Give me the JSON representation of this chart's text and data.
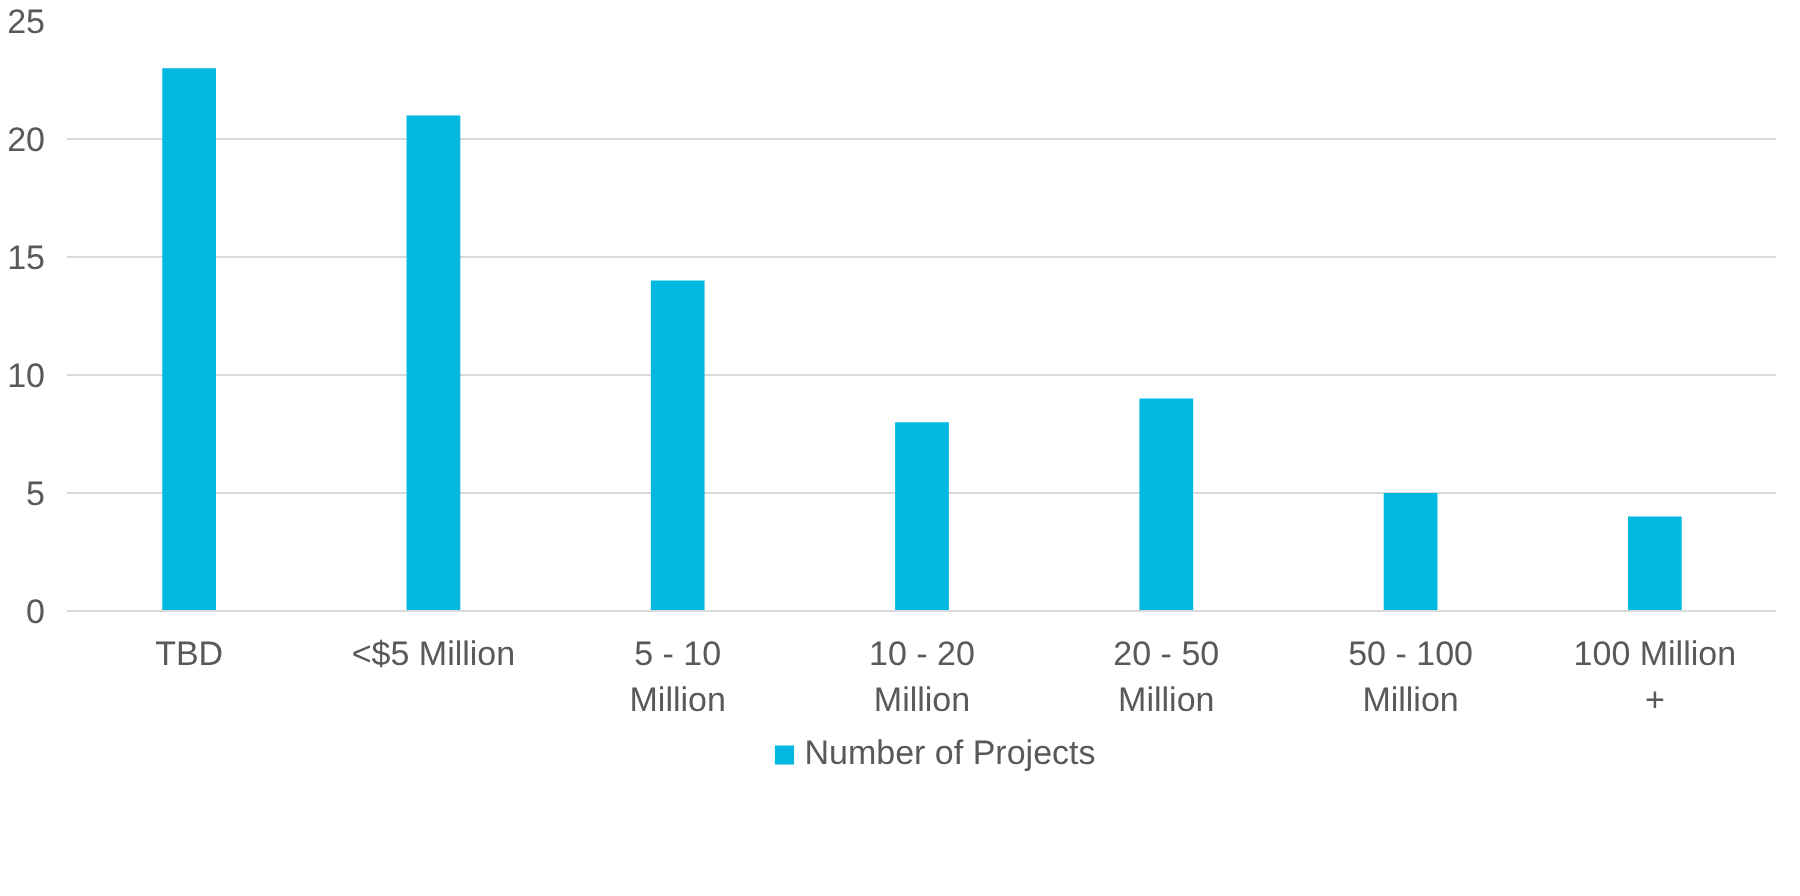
{
  "chart_data": {
    "type": "bar",
    "categories": [
      "TBD",
      "<$5 Million",
      "5 - 10 Million",
      "10 - 20 Million",
      "20 - 50 Million",
      "50 - 100 Million",
      "100 Million +"
    ],
    "series": [
      {
        "name": "Number of Projects",
        "color": "#00b8e0",
        "values": [
          23,
          21,
          14,
          8,
          9,
          5,
          4
        ]
      }
    ],
    "ylim": [
      0,
      25
    ],
    "yticks": [
      0,
      5,
      10,
      15,
      20,
      25
    ],
    "grid": "y",
    "legend": "bottom"
  }
}
